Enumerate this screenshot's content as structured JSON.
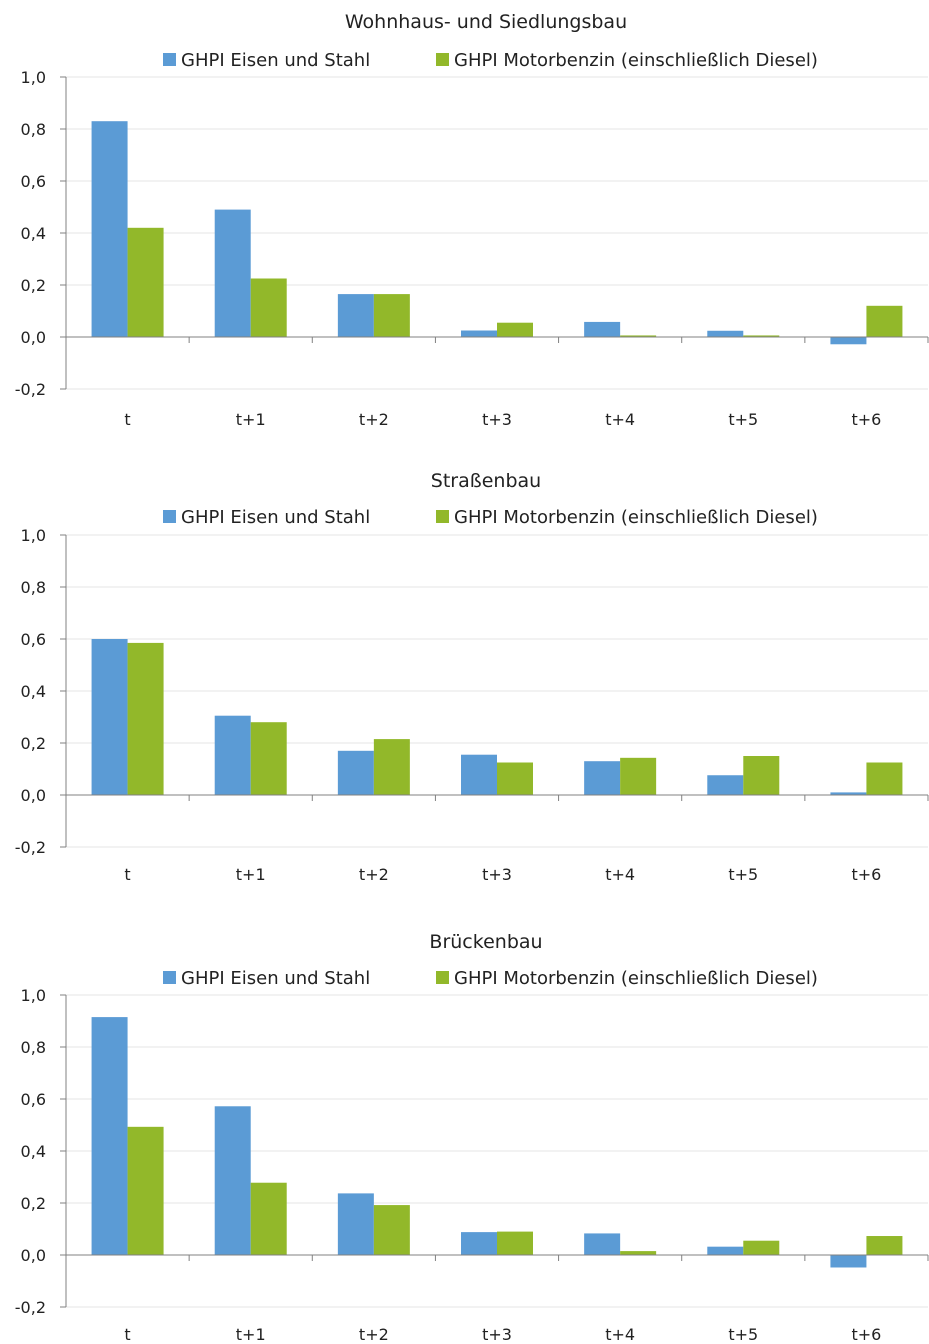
{
  "chart_data": [
    {
      "type": "bar",
      "title": "Wohnhaus- und Siedlungsbau",
      "categories": [
        "t",
        "t+1",
        "t+2",
        "t+3",
        "t+4",
        "t+5",
        "t+6"
      ],
      "series": [
        {
          "name": "GHPI Eisen und Stahl",
          "values": [
            0.83,
            0.49,
            0.165,
            0.025,
            0.058,
            0.024,
            -0.028
          ]
        },
        {
          "name": "GHPI Motorbenzin (einschließlich Diesel)",
          "values": [
            0.42,
            0.225,
            0.165,
            0.055,
            0.006,
            0.006,
            0.12
          ]
        }
      ],
      "ylim": [
        -0.2,
        1.0
      ],
      "yticks": [
        "-0,2",
        "0,0",
        "0,2",
        "0,4",
        "0,6",
        "0,8",
        "1,0"
      ],
      "grid": true,
      "legend": "top"
    },
    {
      "type": "bar",
      "title": "Straßenbau",
      "categories": [
        "t",
        "t+1",
        "t+2",
        "t+3",
        "t+4",
        "t+5",
        "t+6"
      ],
      "series": [
        {
          "name": "GHPI Eisen und Stahl",
          "values": [
            0.6,
            0.305,
            0.17,
            0.155,
            0.13,
            0.076,
            0.01
          ]
        },
        {
          "name": "GHPI Motorbenzin (einschließlich Diesel)",
          "values": [
            0.585,
            0.28,
            0.215,
            0.125,
            0.143,
            0.15,
            0.125
          ]
        }
      ],
      "ylim": [
        -0.2,
        1.0
      ],
      "yticks": [
        "-0,2",
        "0,0",
        "0,2",
        "0,4",
        "0,6",
        "0,8",
        "1,0"
      ],
      "grid": true,
      "legend": "top"
    },
    {
      "type": "bar",
      "title": "Brückenbau",
      "categories": [
        "t",
        "t+1",
        "t+2",
        "t+3",
        "t+4",
        "t+5",
        "t+6"
      ],
      "series": [
        {
          "name": "GHPI Eisen und Stahl",
          "values": [
            0.915,
            0.572,
            0.237,
            0.088,
            0.083,
            0.032,
            -0.048
          ]
        },
        {
          "name": "GHPI Motorbenzin (einschließlich Diesel)",
          "values": [
            0.493,
            0.278,
            0.192,
            0.09,
            0.015,
            0.055,
            0.073
          ]
        }
      ],
      "ylim": [
        -0.2,
        1.0
      ],
      "yticks": [
        "-0,2",
        "0,0",
        "0,2",
        "0,4",
        "0,6",
        "0,8",
        "1,0"
      ],
      "grid": true,
      "legend": "top"
    }
  ],
  "colors": {
    "series_1": "#5b9bd5",
    "series_2": "#92b82a",
    "grid": "#e6e6e6",
    "axis": "#808080"
  }
}
